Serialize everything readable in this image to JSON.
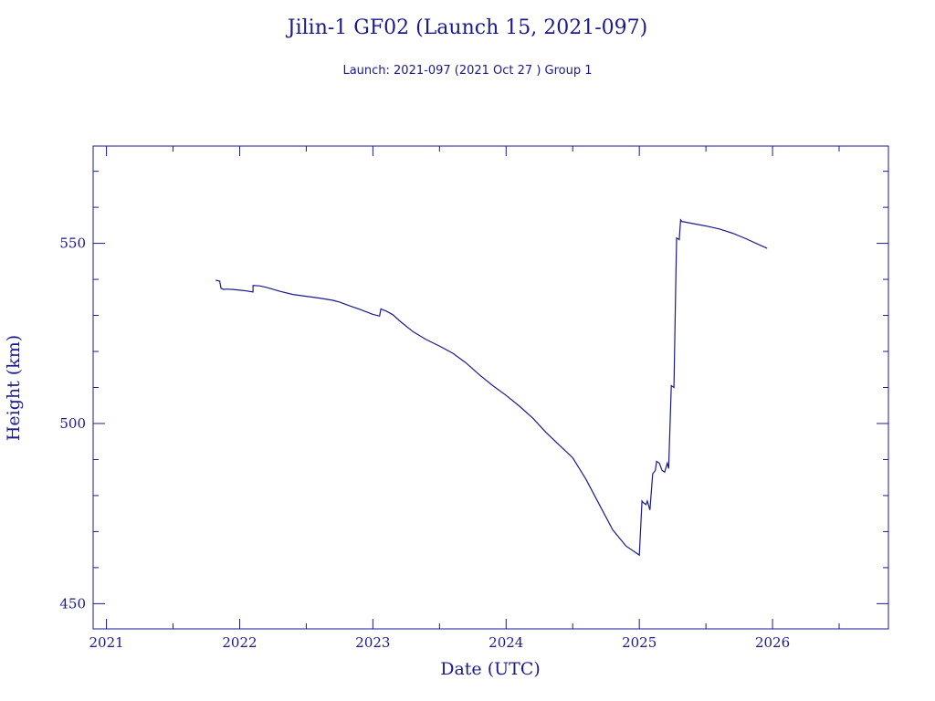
{
  "chart_data": {
    "type": "line",
    "title": "Jilin-1 GF02 (Launch 15, 2021-097)",
    "subtitle": "Launch: 2021-097  (2021 Oct 27 )  Group 1",
    "xlabel": "Date (UTC)",
    "ylabel": "Height (km)",
    "xlim": [
      2020.9,
      2026.87
    ],
    "ylim": [
      443,
      577
    ],
    "x_ticks": [
      {
        "value": 2021,
        "label": "2021"
      },
      {
        "value": 2022,
        "label": "2022"
      },
      {
        "value": 2023,
        "label": "2023"
      },
      {
        "value": 2024,
        "label": "2024"
      },
      {
        "value": 2025,
        "label": "2025"
      },
      {
        "value": 2026,
        "label": "2026"
      }
    ],
    "y_ticks": [
      {
        "value": 450,
        "label": "450"
      },
      {
        "value": 500,
        "label": "500"
      },
      {
        "value": 550,
        "label": "550"
      }
    ],
    "grid": false,
    "line_color": "#1a1a8c",
    "series": [
      {
        "x": [
          2021.82,
          2021.85,
          2021.86,
          2021.88,
          2021.9,
          2021.95,
          2022.0,
          2022.05,
          2022.1,
          2022.1,
          2022.15,
          2022.2,
          2022.3,
          2022.4,
          2022.5,
          2022.6,
          2022.7,
          2022.75,
          2022.8,
          2022.9,
          2023.0,
          2023.05,
          2023.06,
          2023.1,
          2023.15,
          2023.2,
          2023.3,
          2023.4,
          2023.5,
          2023.6,
          2023.7,
          2023.8,
          2023.9,
          2024.0,
          2024.1,
          2024.2,
          2024.3,
          2024.4,
          2024.5,
          2024.6,
          2024.7,
          2024.8,
          2024.9,
          2025.0,
          2025.02,
          2025.03,
          2025.05,
          2025.06,
          2025.08,
          2025.1,
          2025.12,
          2025.13,
          2025.15,
          2025.17,
          2025.19,
          2025.21,
          2025.22,
          2025.24,
          2025.26,
          2025.27,
          2025.28,
          2025.3,
          2025.31,
          2025.32,
          2025.33,
          2025.4,
          2025.5,
          2025.6,
          2025.7,
          2025.8,
          2025.9,
          2025.96
        ],
        "y": [
          539.8,
          539.5,
          537.5,
          537.2,
          537.3,
          537.2,
          537.0,
          536.8,
          536.5,
          538.3,
          538.2,
          537.8,
          536.7,
          535.8,
          535.3,
          534.8,
          534.2,
          533.7,
          533.0,
          531.7,
          530.3,
          529.8,
          531.8,
          531.2,
          530.2,
          528.5,
          525.5,
          523.3,
          521.5,
          519.5,
          516.8,
          513.5,
          510.5,
          507.8,
          504.8,
          501.5,
          497.5,
          494.0,
          490.5,
          484.5,
          477.5,
          470.5,
          466.0,
          463.5,
          478.5,
          478.0,
          477.5,
          478.5,
          476.0,
          486.0,
          487.0,
          489.5,
          489.0,
          487.0,
          486.5,
          489.0,
          487.5,
          510.5,
          510.0,
          532.0,
          551.5,
          551.0,
          556.5,
          556.0,
          556.0,
          555.5,
          554.8,
          554.0,
          552.8,
          551.3,
          549.6,
          548.6
        ]
      }
    ]
  }
}
